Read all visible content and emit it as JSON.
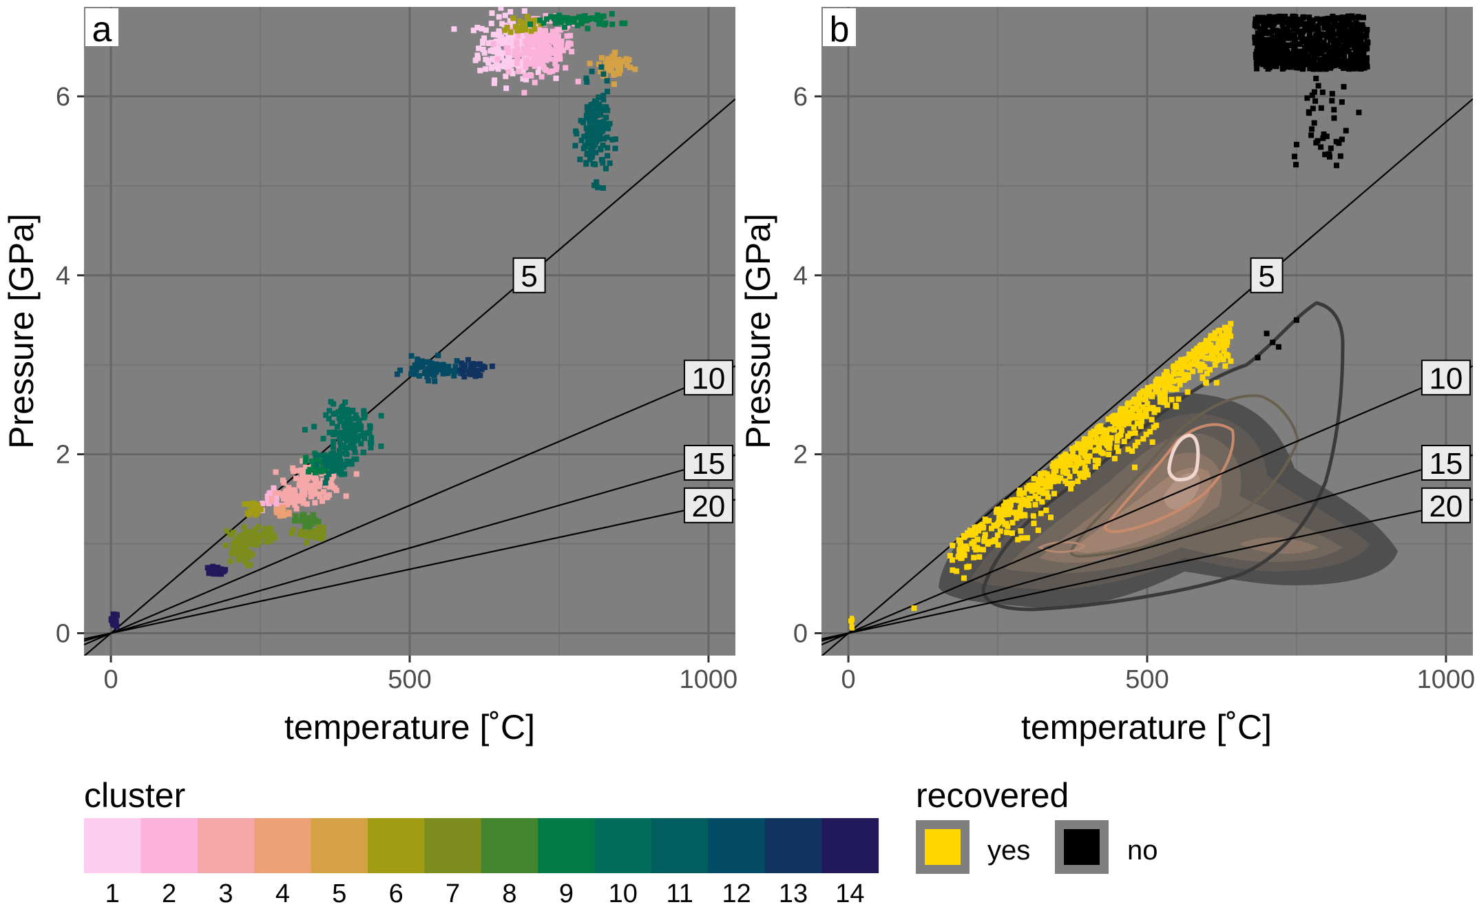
{
  "chart_data": [
    {
      "panel": "a",
      "type": "scatter",
      "xlabel": "temperature [°C]",
      "ylabel": "Pressure [GPa]",
      "xlim": [
        -45,
        1045
      ],
      "ylim": [
        -0.25,
        7.0
      ],
      "xticks": [
        0,
        500,
        1000
      ],
      "yticks": [
        0,
        2,
        4,
        6
      ],
      "grid": true,
      "background": "#7f7f7f",
      "reference_lines": [
        {
          "label": "5",
          "slope_gpa_per_c": 0.005714
        },
        {
          "label": "10",
          "slope_gpa_per_c": 0.002857
        },
        {
          "label": "15",
          "slope_gpa_per_c": 0.001905
        },
        {
          "label": "20",
          "slope_gpa_per_c": 0.001429
        }
      ],
      "clusters": [
        {
          "id": 1,
          "color": "#fdcdf0",
          "blobs": [
            [
              670,
              6.55,
              55,
              0.35
            ]
          ]
        },
        {
          "id": 2,
          "color": "#fbb3da",
          "blobs": [
            [
              720,
              6.55,
              55,
              0.3
            ],
            [
              270,
              1.5,
              15,
              0.1
            ]
          ]
        },
        {
          "id": 3,
          "color": "#f6a8a8",
          "blobs": [
            [
              340,
              1.7,
              45,
              0.2
            ],
            [
              300,
              1.5,
              30,
              0.12
            ]
          ]
        },
        {
          "id": 4,
          "color": "#ed9f76",
          "blobs": [
            [
              285,
              1.35,
              15,
              0.08
            ]
          ]
        },
        {
          "id": 5,
          "color": "#d4a145",
          "blobs": [
            [
              845,
              6.35,
              30,
              0.15
            ]
          ]
        },
        {
          "id": 6,
          "color": "#a29c15",
          "blobs": [
            [
              690,
              6.8,
              25,
              0.1
            ],
            [
              240,
              1.4,
              12,
              0.08
            ]
          ]
        },
        {
          "id": 7,
          "color": "#7c8d1d",
          "blobs": [
            [
              215,
              0.95,
              25,
              0.2
            ],
            [
              250,
              1.1,
              25,
              0.1
            ],
            [
              335,
              1.1,
              30,
              0.08
            ]
          ]
        },
        {
          "id": 8,
          "color": "#44852f",
          "blobs": [
            [
              330,
              1.25,
              20,
              0.08
            ]
          ]
        },
        {
          "id": 9,
          "color": "#007a47",
          "blobs": [
            [
              780,
              6.85,
              70,
              0.07
            ],
            [
              350,
              1.9,
              25,
              0.1
            ]
          ]
        },
        {
          "id": 10,
          "color": "#006c5c",
          "blobs": [
            [
              400,
              2.25,
              40,
              0.3
            ],
            [
              375,
              1.9,
              25,
              0.15
            ]
          ]
        },
        {
          "id": 11,
          "color": "#025e5e",
          "blobs": [
            [
              810,
              5.6,
              25,
              0.5
            ]
          ]
        },
        {
          "id": 12,
          "color": "#044b66",
          "blobs": [
            [
              540,
              2.95,
              50,
              0.12
            ]
          ]
        },
        {
          "id": 13,
          "color": "#103360",
          "blobs": [
            [
              605,
              2.95,
              30,
              0.08
            ]
          ]
        },
        {
          "id": 14,
          "color": "#22195a",
          "blobs": [
            [
              180,
              0.7,
              12,
              0.05
            ],
            [
              5,
              0.15,
              5,
              0.08
            ]
          ]
        }
      ]
    },
    {
      "panel": "b",
      "type": "scatter",
      "xlabel": "temperature [°C]",
      "ylabel": "Pressure [GPa]",
      "xlim": [
        -45,
        1045
      ],
      "ylim": [
        -0.25,
        7.0
      ],
      "xticks": [
        0,
        500,
        1000
      ],
      "yticks": [
        0,
        2,
        4,
        6
      ],
      "grid": true,
      "background": "#7f7f7f",
      "reference_lines": [
        {
          "label": "5",
          "slope_gpa_per_c": 0.005714
        },
        {
          "label": "10",
          "slope_gpa_per_c": 0.002857
        },
        {
          "label": "15",
          "slope_gpa_per_c": 0.001905
        },
        {
          "label": "20",
          "slope_gpa_per_c": 0.001429
        }
      ],
      "recovered": {
        "yes": {
          "color": "#ffd700",
          "region": "along 5 °C/km geotherm, T 170–640 °C, P 0.6–3.1 GPa; plus T≈5 °C, P≈0.1 GPa"
        },
        "no": {
          "color": "#000000",
          "region": "T 680–870 °C, P 6.3–6.9 GPa tail to 5.1 GPa; few at 710–750 °C, 3.1–3.5 GPa"
        }
      },
      "density_contours": "filled and line density of natural P–T estimates centered near 560 °C, 1.9 GPa and 780 °C, 0.9 GPa"
    }
  ],
  "panels": {
    "a": {
      "tag": "a",
      "x_title": "temperature [˚C]",
      "y_title": "Pressure [GPa]",
      "x_tick_labels": [
        "0",
        "500",
        "1000"
      ],
      "y_tick_labels": [
        "0",
        "2",
        "4",
        "6"
      ],
      "line_labels": [
        "5",
        "10",
        "15",
        "20"
      ]
    },
    "b": {
      "tag": "b",
      "x_title": "temperature [˚C]",
      "y_title": "Pressure [GPa]",
      "x_tick_labels": [
        "0",
        "500",
        "1000"
      ],
      "y_tick_labels": [
        "0",
        "2",
        "4",
        "6"
      ],
      "line_labels": [
        "5",
        "10",
        "15",
        "20"
      ]
    }
  },
  "legend_cluster": {
    "title": "cluster",
    "labels": [
      "1",
      "2",
      "3",
      "4",
      "5",
      "6",
      "7",
      "8",
      "9",
      "10",
      "11",
      "12",
      "13",
      "14"
    ],
    "colors": [
      "#fdcdf0",
      "#fbb3da",
      "#f6a8a8",
      "#ed9f76",
      "#d4a145",
      "#a29c15",
      "#7c8d1d",
      "#44852f",
      "#007a47",
      "#006c5c",
      "#025e5e",
      "#044b66",
      "#103360",
      "#22195a"
    ]
  },
  "legend_recovered": {
    "title": "recovered",
    "items": [
      {
        "label": "yes",
        "color": "#ffd700"
      },
      {
        "label": "no",
        "color": "#000000"
      }
    ]
  }
}
